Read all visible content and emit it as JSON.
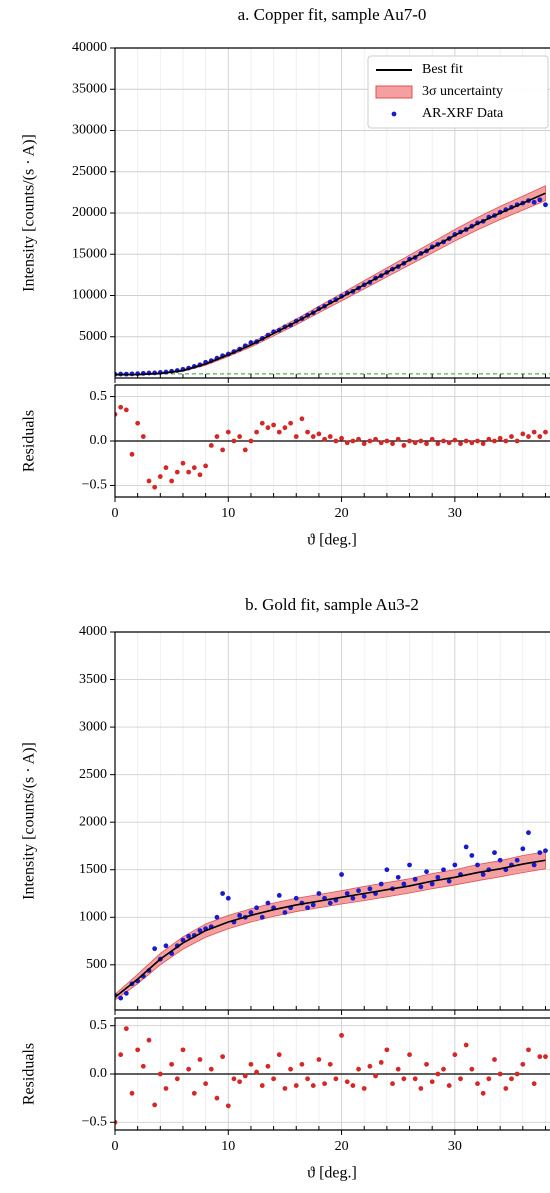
{
  "chart_data": [
    {
      "type": "fit",
      "title": "a. Copper fit, sample Au7-0",
      "ylabel": "Intensity [counts/(s · A)]",
      "xlim": [
        0,
        38.4
      ],
      "xticks": [
        0,
        10,
        20,
        30
      ],
      "xminorticks": [
        2,
        4,
        6,
        8,
        12,
        14,
        16,
        18,
        22,
        24,
        26,
        28,
        32,
        34,
        36,
        38
      ],
      "ylim": [
        0,
        40000
      ],
      "yticks": [
        5000,
        10000,
        15000,
        20000,
        25000,
        30000,
        35000,
        40000
      ],
      "grid": true,
      "legend": "upper right",
      "hline": {
        "value": 500,
        "color": "#2ca02c",
        "dash": true
      },
      "series": [
        {
          "name": "Best fit",
          "color": "#000000",
          "x": [
            0,
            2,
            4,
            6,
            8,
            10,
            12,
            14,
            16,
            18,
            20,
            22,
            24,
            26,
            28,
            30,
            32,
            34,
            36,
            38
          ],
          "values": [
            400,
            420,
            550,
            900,
            1700,
            2800,
            4000,
            5400,
            6800,
            8300,
            9800,
            11300,
            12800,
            14300,
            15800,
            17300,
            18700,
            20000,
            21200,
            22400
          ]
        },
        {
          "name": "3σ uncertainty",
          "color": "#f08080",
          "x": [
            0,
            2,
            4,
            6,
            8,
            10,
            12,
            14,
            16,
            18,
            20,
            22,
            24,
            26,
            28,
            30,
            32,
            34,
            36,
            38
          ],
          "lower": [
            340,
            360,
            480,
            800,
            1550,
            2600,
            3750,
            5100,
            6450,
            7900,
            9350,
            10800,
            12250,
            13700,
            15150,
            16600,
            17950,
            19200,
            20350,
            21500
          ],
          "upper": [
            460,
            480,
            620,
            1000,
            1850,
            3000,
            4250,
            5700,
            7150,
            8700,
            10250,
            11800,
            13350,
            14900,
            16450,
            18000,
            19450,
            20800,
            22050,
            23300
          ]
        },
        {
          "name": "AR-XRF Data",
          "color": "#1a1acd",
          "x": [
            0,
            0.5,
            1,
            1.5,
            2,
            2.5,
            3,
            3.5,
            4,
            4.5,
            5,
            5.5,
            6,
            6.5,
            7,
            7.5,
            8,
            8.5,
            9,
            9.5,
            10,
            10.5,
            11,
            11.5,
            12,
            12.5,
            13,
            13.5,
            14,
            14.5,
            15,
            15.5,
            16,
            16.5,
            17,
            17.5,
            18,
            18.5,
            19,
            19.5,
            20,
            20.5,
            21,
            21.5,
            22,
            22.5,
            23,
            23.5,
            24,
            24.5,
            25,
            25.5,
            26,
            26.5,
            27,
            27.5,
            28,
            28.5,
            29,
            29.5,
            30,
            30.5,
            31,
            31.5,
            32,
            32.5,
            33,
            33.5,
            34,
            34.5,
            35,
            35.5,
            36,
            36.5,
            37,
            37.5,
            38
          ],
          "values": [
            450,
            480,
            470,
            500,
            520,
            560,
            600,
            620,
            680,
            720,
            820,
            900,
            1050,
            1200,
            1400,
            1600,
            1900,
            2100,
            2400,
            2700,
            2900,
            3200,
            3500,
            3900,
            4300,
            4400,
            4800,
            5200,
            5600,
            5800,
            6200,
            6400,
            6900,
            7200,
            7600,
            7900,
            8400,
            8700,
            9200,
            9500,
            9900,
            10300,
            10500,
            10900,
            11300,
            11600,
            12100,
            12400,
            12800,
            13200,
            13500,
            13900,
            14400,
            14600,
            15100,
            15400,
            15900,
            16200,
            16500,
            16900,
            17400,
            17700,
            18000,
            18400,
            18800,
            19000,
            19500,
            19700,
            20100,
            20400,
            20700,
            21000,
            21200,
            21500,
            21300,
            21600,
            21000
          ]
        }
      ]
    },
    {
      "type": "scatter",
      "ylabel": "Residuals",
      "xlabel": "ϑ [deg.]",
      "xlim": [
        0,
        38.4
      ],
      "xticks": [
        0,
        10,
        20,
        30
      ],
      "xminorticks": [
        2,
        4,
        6,
        8,
        12,
        14,
        16,
        18,
        22,
        24,
        26,
        28,
        32,
        34,
        36,
        38
      ],
      "ylim": [
        -0.63,
        0.63
      ],
      "yticks": [
        {
          "value": -0.5,
          "label": "−0.5"
        },
        {
          "value": 0,
          "label": "0.0"
        },
        0.5
      ],
      "grid": true,
      "hline": {
        "value": 0,
        "color": "#000000",
        "dash": false
      },
      "series": [
        {
          "color": "#d62728",
          "x": [
            0,
            0.5,
            1,
            1.5,
            2,
            2.5,
            3,
            3.5,
            4,
            4.5,
            5,
            5.5,
            6,
            6.5,
            7,
            7.5,
            8,
            8.5,
            9,
            9.5,
            10,
            10.5,
            11,
            11.5,
            12,
            12.5,
            13,
            13.5,
            14,
            14.5,
            15,
            15.5,
            16,
            16.5,
            17,
            17.5,
            18,
            18.5,
            19,
            19.5,
            20,
            20.5,
            21,
            21.5,
            22,
            22.5,
            23,
            23.5,
            24,
            24.5,
            25,
            25.5,
            26,
            26.5,
            27,
            27.5,
            28,
            28.5,
            29,
            29.5,
            30,
            30.5,
            31,
            31.5,
            32,
            32.5,
            33,
            33.5,
            34,
            34.5,
            35,
            35.5,
            36,
            36.5,
            37,
            37.5,
            38
          ],
          "values": [
            0.3,
            0.38,
            0.35,
            -0.15,
            0.2,
            0.05,
            -0.45,
            -0.52,
            -0.4,
            -0.3,
            -0.45,
            -0.35,
            -0.25,
            -0.35,
            -0.3,
            -0.38,
            -0.28,
            -0.05,
            0.05,
            -0.1,
            0.1,
            0.0,
            0.05,
            -0.1,
            0.0,
            0.1,
            0.2,
            0.15,
            0.18,
            0.1,
            0.15,
            0.2,
            0.05,
            0.25,
            0.1,
            0.05,
            0.08,
            0.02,
            0.05,
            0.0,
            0.03,
            -0.02,
            0.0,
            0.02,
            -0.03,
            0.0,
            0.02,
            -0.02,
            0.0,
            -0.03,
            0.02,
            -0.05,
            0.0,
            -0.02,
            0.0,
            -0.03,
            0.02,
            -0.03,
            0.0,
            -0.02,
            0.01,
            -0.03,
            0.0,
            -0.02,
            0.0,
            -0.03,
            0.02,
            0.0,
            0.03,
            0.0,
            0.05,
            0.0,
            0.08,
            0.05,
            0.1,
            0.05,
            0.1
          ]
        }
      ]
    },
    {
      "type": "fit",
      "title": "b. Gold fit, sample Au3-2",
      "ylabel": "Intensity [counts/(s · A)]",
      "xlim": [
        0,
        38.4
      ],
      "xticks": [
        0,
        10,
        20,
        30
      ],
      "xminorticks": [
        2,
        4,
        6,
        8,
        12,
        14,
        16,
        18,
        22,
        24,
        26,
        28,
        32,
        34,
        36,
        38
      ],
      "ylim": [
        25,
        4000
      ],
      "yticks": [
        500,
        1000,
        1500,
        2000,
        2500,
        3000,
        3500,
        4000
      ],
      "grid": true,
      "series": [
        {
          "color": "#000000",
          "x": [
            0,
            2,
            4,
            6,
            8,
            10,
            12,
            14,
            16,
            18,
            20,
            22,
            24,
            26,
            28,
            30,
            32,
            34,
            36,
            38
          ],
          "values": [
            160,
            350,
            560,
            730,
            860,
            950,
            1020,
            1080,
            1130,
            1170,
            1210,
            1250,
            1290,
            1330,
            1380,
            1420,
            1470,
            1510,
            1560,
            1600
          ]
        },
        {
          "color": "#f08080",
          "x": [
            0,
            2,
            4,
            6,
            8,
            10,
            12,
            14,
            16,
            18,
            20,
            22,
            24,
            26,
            28,
            30,
            32,
            34,
            36,
            38
          ],
          "lower": [
            130,
            300,
            500,
            665,
            790,
            880,
            950,
            1010,
            1060,
            1100,
            1140,
            1175,
            1215,
            1255,
            1300,
            1340,
            1385,
            1425,
            1470,
            1510
          ],
          "upper": [
            190,
            400,
            620,
            795,
            930,
            1020,
            1090,
            1150,
            1200,
            1240,
            1280,
            1325,
            1365,
            1405,
            1460,
            1500,
            1555,
            1595,
            1650,
            1690
          ]
        },
        {
          "color": "#1a1acd",
          "x": [
            0,
            0.5,
            1,
            1.5,
            2,
            2.5,
            3,
            3.5,
            4,
            4.5,
            5,
            5.5,
            6,
            6.5,
            7,
            7.5,
            8,
            8.5,
            9,
            9.5,
            10,
            10.5,
            11,
            11.5,
            12,
            12.5,
            13,
            13.5,
            14,
            14.5,
            15,
            15.5,
            16,
            16.5,
            17,
            17.5,
            18,
            18.5,
            19,
            19.5,
            20,
            20.5,
            21,
            21.5,
            22,
            22.5,
            23,
            23.5,
            24,
            24.5,
            25,
            25.5,
            26,
            26.5,
            27,
            27.5,
            28,
            28.5,
            29,
            29.5,
            30,
            30.5,
            31,
            31.5,
            32,
            32.5,
            33,
            33.5,
            34,
            34.5,
            35,
            35.5,
            36,
            36.5,
            37,
            37.5,
            38
          ],
          "values": [
            180,
            150,
            200,
            300,
            330,
            380,
            440,
            670,
            560,
            700,
            620,
            700,
            760,
            800,
            810,
            860,
            880,
            900,
            1000,
            1250,
            1200,
            950,
            1020,
            1000,
            1050,
            1100,
            1000,
            1150,
            1100,
            1230,
            1050,
            1100,
            1200,
            1150,
            1100,
            1130,
            1250,
            1200,
            1150,
            1180,
            1450,
            1250,
            1200,
            1280,
            1220,
            1300,
            1250,
            1350,
            1500,
            1300,
            1420,
            1350,
            1550,
            1400,
            1320,
            1480,
            1350,
            1420,
            1500,
            1380,
            1550,
            1450,
            1740,
            1650,
            1550,
            1450,
            1500,
            1680,
            1600,
            1500,
            1550,
            1600,
            1720,
            1890,
            1550,
            1680,
            1700
          ]
        }
      ]
    },
    {
      "type": "scatter",
      "ylabel": "Residuals",
      "xlabel": "ϑ [deg.]",
      "xlim": [
        0,
        38.4
      ],
      "xticks": [
        0,
        10,
        20,
        30
      ],
      "xminorticks": [
        2,
        4,
        6,
        8,
        12,
        14,
        16,
        18,
        22,
        24,
        26,
        28,
        32,
        34,
        36,
        38
      ],
      "ylim": [
        -0.58,
        0.58
      ],
      "yticks": [
        {
          "value": -0.5,
          "label": "−0.5"
        },
        {
          "value": 0,
          "label": "0.0"
        },
        0.5
      ],
      "grid": true,
      "hline": {
        "value": 0,
        "color": "#000000",
        "dash": false
      },
      "series": [
        {
          "color": "#d62728",
          "x": [
            0,
            0.5,
            1,
            1.5,
            2,
            2.5,
            3,
            3.5,
            4,
            4.5,
            5,
            5.5,
            6,
            6.5,
            7,
            7.5,
            8,
            8.5,
            9,
            9.5,
            10,
            10.5,
            11,
            11.5,
            12,
            12.5,
            13,
            13.5,
            14,
            14.5,
            15,
            15.5,
            16,
            16.5,
            17,
            17.5,
            18,
            18.5,
            19,
            19.5,
            20,
            20.5,
            21,
            21.5,
            22,
            22.5,
            23,
            23.5,
            24,
            24.5,
            25,
            25.5,
            26,
            26.5,
            27,
            27.5,
            28,
            28.5,
            29,
            29.5,
            30,
            30.5,
            31,
            31.5,
            32,
            32.5,
            33,
            33.5,
            34,
            34.5,
            35,
            35.5,
            36,
            36.5,
            37,
            37.5,
            38
          ],
          "values": [
            -0.5,
            0.2,
            0.47,
            -0.2,
            0.25,
            0.08,
            0.35,
            -0.32,
            0.0,
            -0.15,
            0.1,
            -0.05,
            0.25,
            0.05,
            -0.2,
            0.15,
            -0.1,
            0.05,
            -0.25,
            0.18,
            -0.33,
            -0.05,
            -0.08,
            -0.02,
            0.1,
            0.02,
            -0.12,
            0.08,
            -0.05,
            0.2,
            -0.15,
            0.05,
            -0.12,
            0.1,
            -0.05,
            -0.12,
            0.15,
            -0.1,
            0.1,
            -0.05,
            0.4,
            -0.08,
            -0.12,
            0.05,
            -0.15,
            0.08,
            -0.02,
            0.12,
            0.25,
            -0.1,
            0.05,
            -0.05,
            0.2,
            -0.05,
            -0.15,
            0.1,
            -0.08,
            0.0,
            0.05,
            -0.12,
            0.2,
            -0.05,
            0.3,
            0.05,
            -0.1,
            -0.2,
            -0.05,
            0.15,
            0.0,
            -0.15,
            -0.05,
            0.0,
            0.1,
            0.25,
            -0.1,
            0.18,
            0.18
          ]
        }
      ]
    }
  ]
}
